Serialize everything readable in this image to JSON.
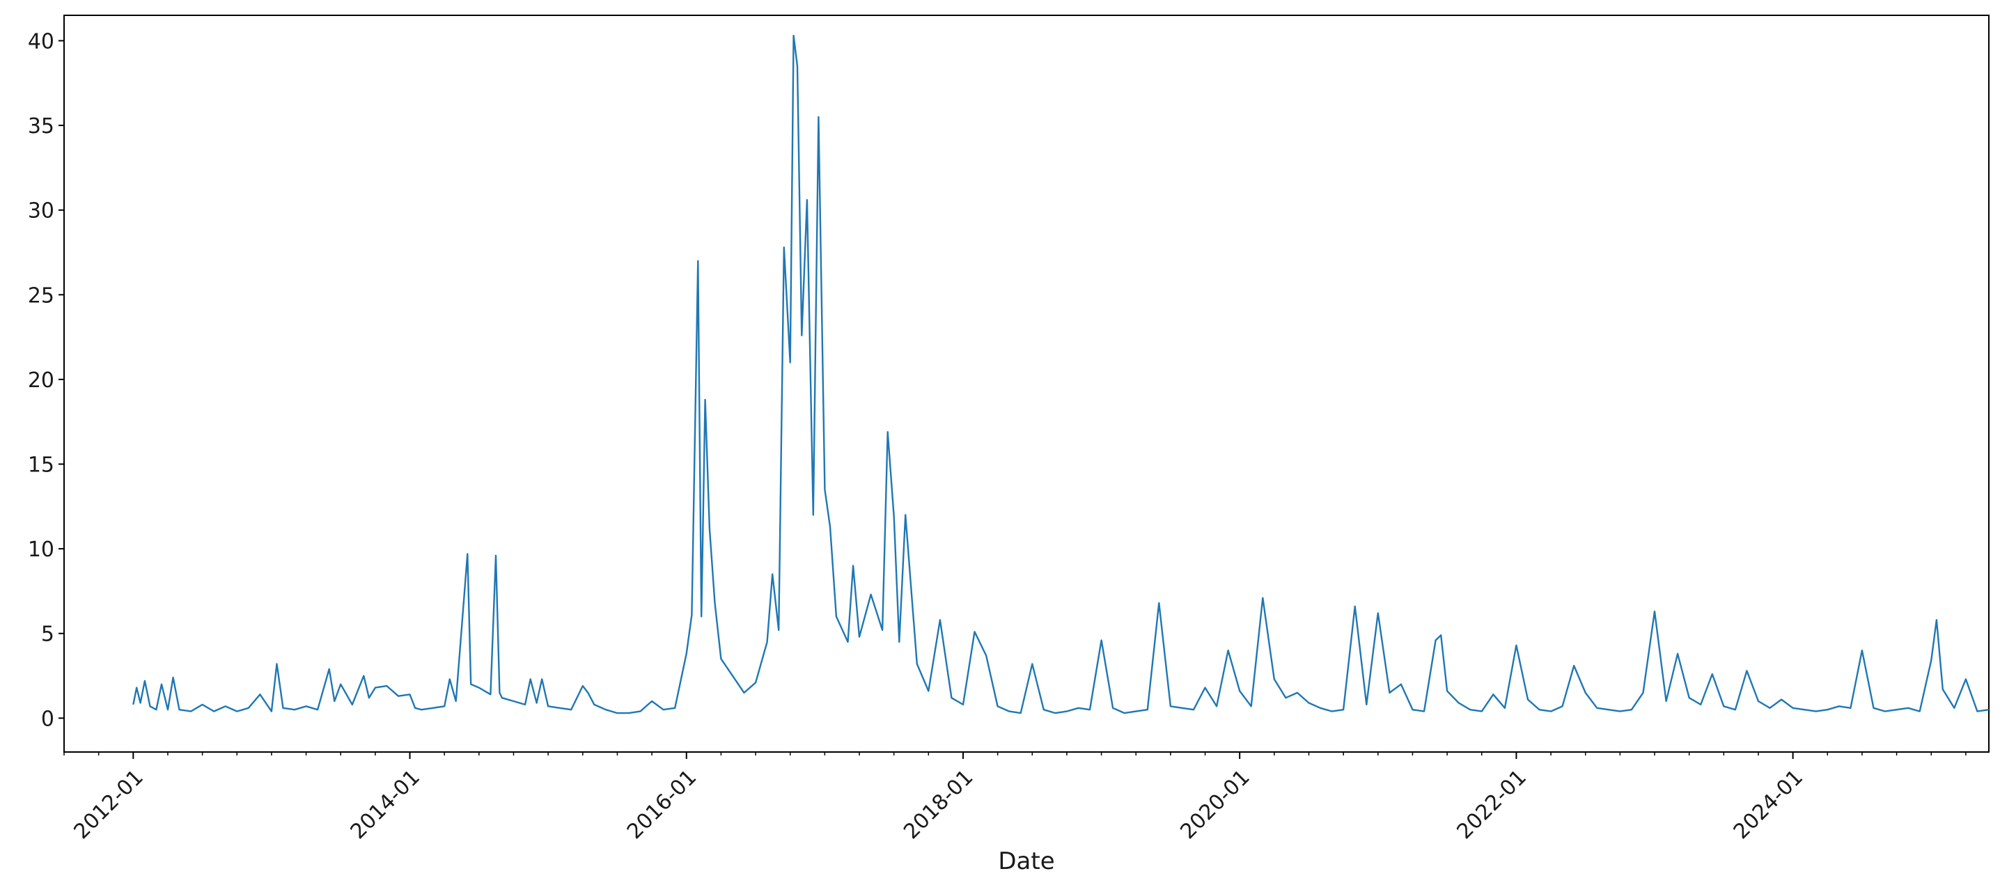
{
  "chart_data": {
    "type": "line",
    "title": "",
    "xlabel": "Date",
    "ylabel": "",
    "x_tick_labels": [
      "2012-01",
      "2014-01",
      "2016-01",
      "2018-01",
      "2020-01",
      "2022-01",
      "2024-01"
    ],
    "y_tick_labels": [
      "0",
      "5",
      "10",
      "15",
      "20",
      "25",
      "30",
      "35",
      "40"
    ],
    "xlim": [
      "2011-07",
      "2025-06"
    ],
    "ylim": [
      -2,
      41.5
    ],
    "grid": false,
    "legend": false,
    "series": [
      {
        "color": "#1f77b4",
        "points": [
          [
            "2012-01-01",
            0.8
          ],
          [
            "2012-01-10",
            1.8
          ],
          [
            "2012-01-20",
            0.9
          ],
          [
            "2012-02-01",
            2.2
          ],
          [
            "2012-02-15",
            0.7
          ],
          [
            "2012-03-01",
            0.5
          ],
          [
            "2012-03-15",
            2.0
          ],
          [
            "2012-04-01",
            0.5
          ],
          [
            "2012-04-15",
            2.4
          ],
          [
            "2012-05-01",
            0.5
          ],
          [
            "2012-06-01",
            0.4
          ],
          [
            "2012-07-01",
            0.8
          ],
          [
            "2012-08-01",
            0.4
          ],
          [
            "2012-09-01",
            0.7
          ],
          [
            "2012-10-01",
            0.4
          ],
          [
            "2012-11-01",
            0.6
          ],
          [
            "2012-12-01",
            1.4
          ],
          [
            "2013-01-01",
            0.4
          ],
          [
            "2013-01-15",
            3.2
          ],
          [
            "2013-02-01",
            0.6
          ],
          [
            "2013-03-01",
            0.5
          ],
          [
            "2013-04-01",
            0.7
          ],
          [
            "2013-05-01",
            0.5
          ],
          [
            "2013-06-01",
            2.9
          ],
          [
            "2013-06-15",
            1.0
          ],
          [
            "2013-07-01",
            2.0
          ],
          [
            "2013-08-01",
            0.8
          ],
          [
            "2013-09-01",
            2.5
          ],
          [
            "2013-09-15",
            1.2
          ],
          [
            "2013-10-01",
            1.8
          ],
          [
            "2013-11-01",
            1.9
          ],
          [
            "2013-12-01",
            1.3
          ],
          [
            "2014-01-01",
            1.4
          ],
          [
            "2014-01-15",
            0.6
          ],
          [
            "2014-02-01",
            0.5
          ],
          [
            "2014-03-01",
            0.6
          ],
          [
            "2014-04-01",
            0.7
          ],
          [
            "2014-04-15",
            2.3
          ],
          [
            "2014-05-01",
            1.0
          ],
          [
            "2014-06-01",
            9.7
          ],
          [
            "2014-06-10",
            2.0
          ],
          [
            "2014-07-01",
            1.8
          ],
          [
            "2014-08-01",
            1.4
          ],
          [
            "2014-08-15",
            9.6
          ],
          [
            "2014-08-25",
            1.5
          ],
          [
            "2014-09-01",
            1.2
          ],
          [
            "2014-10-01",
            1.0
          ],
          [
            "2014-11-01",
            0.8
          ],
          [
            "2014-11-15",
            2.3
          ],
          [
            "2014-12-01",
            0.9
          ],
          [
            "2014-12-15",
            2.3
          ],
          [
            "2015-01-01",
            0.7
          ],
          [
            "2015-02-01",
            0.6
          ],
          [
            "2015-03-01",
            0.5
          ],
          [
            "2015-04-01",
            1.9
          ],
          [
            "2015-04-15",
            1.5
          ],
          [
            "2015-05-01",
            0.8
          ],
          [
            "2015-06-01",
            0.5
          ],
          [
            "2015-07-01",
            0.3
          ],
          [
            "2015-08-01",
            0.3
          ],
          [
            "2015-09-01",
            0.4
          ],
          [
            "2015-10-01",
            1.0
          ],
          [
            "2015-11-01",
            0.5
          ],
          [
            "2015-12-01",
            0.6
          ],
          [
            "2016-01-01",
            3.8
          ],
          [
            "2016-01-15",
            6.1
          ],
          [
            "2016-02-01",
            27.0
          ],
          [
            "2016-02-10",
            6.0
          ],
          [
            "2016-02-20",
            18.8
          ],
          [
            "2016-03-01",
            11.2
          ],
          [
            "2016-03-15",
            6.8
          ],
          [
            "2016-04-01",
            3.5
          ],
          [
            "2016-05-01",
            2.5
          ],
          [
            "2016-06-01",
            1.5
          ],
          [
            "2016-07-01",
            2.1
          ],
          [
            "2016-08-01",
            4.5
          ],
          [
            "2016-08-15",
            8.5
          ],
          [
            "2016-09-01",
            5.2
          ],
          [
            "2016-09-15",
            27.8
          ],
          [
            "2016-10-01",
            21.0
          ],
          [
            "2016-10-10",
            40.3
          ],
          [
            "2016-10-20",
            38.5
          ],
          [
            "2016-11-01",
            22.6
          ],
          [
            "2016-11-15",
            30.6
          ],
          [
            "2016-12-01",
            12.0
          ],
          [
            "2016-12-15",
            35.5
          ],
          [
            "2017-01-01",
            13.5
          ],
          [
            "2017-01-15",
            11.3
          ],
          [
            "2017-02-01",
            6.0
          ],
          [
            "2017-03-01",
            4.5
          ],
          [
            "2017-03-15",
            9.0
          ],
          [
            "2017-04-01",
            4.8
          ],
          [
            "2017-05-01",
            7.3
          ],
          [
            "2017-06-01",
            5.2
          ],
          [
            "2017-06-15",
            16.9
          ],
          [
            "2017-07-01",
            11.9
          ],
          [
            "2017-07-15",
            4.5
          ],
          [
            "2017-08-01",
            12.0
          ],
          [
            "2017-09-01",
            3.2
          ],
          [
            "2017-10-01",
            1.6
          ],
          [
            "2017-11-01",
            5.8
          ],
          [
            "2017-12-01",
            1.2
          ],
          [
            "2018-01-01",
            0.8
          ],
          [
            "2018-02-01",
            5.1
          ],
          [
            "2018-03-01",
            3.7
          ],
          [
            "2018-04-01",
            0.7
          ],
          [
            "2018-05-01",
            0.4
          ],
          [
            "2018-06-01",
            0.3
          ],
          [
            "2018-07-01",
            3.2
          ],
          [
            "2018-08-01",
            0.5
          ],
          [
            "2018-09-01",
            0.3
          ],
          [
            "2018-10-01",
            0.4
          ],
          [
            "2018-11-01",
            0.6
          ],
          [
            "2018-12-01",
            0.5
          ],
          [
            "2019-01-01",
            4.6
          ],
          [
            "2019-02-01",
            0.6
          ],
          [
            "2019-03-01",
            0.3
          ],
          [
            "2019-04-01",
            0.4
          ],
          [
            "2019-05-01",
            0.5
          ],
          [
            "2019-06-01",
            6.8
          ],
          [
            "2019-07-01",
            0.7
          ],
          [
            "2019-08-01",
            0.6
          ],
          [
            "2019-09-01",
            0.5
          ],
          [
            "2019-10-01",
            1.8
          ],
          [
            "2019-11-01",
            0.7
          ],
          [
            "2019-12-01",
            4.0
          ],
          [
            "2020-01-01",
            1.6
          ],
          [
            "2020-02-01",
            0.7
          ],
          [
            "2020-03-01",
            7.1
          ],
          [
            "2020-04-01",
            2.3
          ],
          [
            "2020-05-01",
            1.2
          ],
          [
            "2020-06-01",
            1.5
          ],
          [
            "2020-07-01",
            0.9
          ],
          [
            "2020-08-01",
            0.6
          ],
          [
            "2020-09-01",
            0.4
          ],
          [
            "2020-10-01",
            0.5
          ],
          [
            "2020-11-01",
            6.6
          ],
          [
            "2020-12-01",
            0.8
          ],
          [
            "2021-01-01",
            6.2
          ],
          [
            "2021-02-01",
            1.5
          ],
          [
            "2021-03-01",
            2.0
          ],
          [
            "2021-04-01",
            0.5
          ],
          [
            "2021-05-01",
            0.4
          ],
          [
            "2021-06-01",
            4.6
          ],
          [
            "2021-06-15",
            4.9
          ],
          [
            "2021-07-01",
            1.6
          ],
          [
            "2021-08-01",
            0.9
          ],
          [
            "2021-09-01",
            0.5
          ],
          [
            "2021-10-01",
            0.4
          ],
          [
            "2021-11-01",
            1.4
          ],
          [
            "2021-12-01",
            0.6
          ],
          [
            "2022-01-01",
            4.3
          ],
          [
            "2022-02-01",
            1.1
          ],
          [
            "2022-03-01",
            0.5
          ],
          [
            "2022-04-01",
            0.4
          ],
          [
            "2022-05-01",
            0.7
          ],
          [
            "2022-06-01",
            3.1
          ],
          [
            "2022-07-01",
            1.5
          ],
          [
            "2022-08-01",
            0.6
          ],
          [
            "2022-09-01",
            0.5
          ],
          [
            "2022-10-01",
            0.4
          ],
          [
            "2022-11-01",
            0.5
          ],
          [
            "2022-12-01",
            1.5
          ],
          [
            "2023-01-01",
            6.3
          ],
          [
            "2023-02-01",
            1.0
          ],
          [
            "2023-03-01",
            3.8
          ],
          [
            "2023-04-01",
            1.2
          ],
          [
            "2023-05-01",
            0.8
          ],
          [
            "2023-06-01",
            2.6
          ],
          [
            "2023-07-01",
            0.7
          ],
          [
            "2023-08-01",
            0.5
          ],
          [
            "2023-09-01",
            2.8
          ],
          [
            "2023-10-01",
            1.0
          ],
          [
            "2023-11-01",
            0.6
          ],
          [
            "2023-12-01",
            1.1
          ],
          [
            "2024-01-01",
            0.6
          ],
          [
            "2024-02-01",
            0.5
          ],
          [
            "2024-03-01",
            0.4
          ],
          [
            "2024-04-01",
            0.5
          ],
          [
            "2024-05-01",
            0.7
          ],
          [
            "2024-06-01",
            0.6
          ],
          [
            "2024-07-01",
            4.0
          ],
          [
            "2024-08-01",
            0.6
          ],
          [
            "2024-09-01",
            0.4
          ],
          [
            "2024-10-01",
            0.5
          ],
          [
            "2024-11-01",
            0.6
          ],
          [
            "2024-12-01",
            0.4
          ],
          [
            "2025-01-01",
            3.4
          ],
          [
            "2025-01-15",
            5.8
          ],
          [
            "2025-02-01",
            1.7
          ],
          [
            "2025-03-01",
            0.6
          ],
          [
            "2025-04-01",
            2.3
          ],
          [
            "2025-05-01",
            0.4
          ],
          [
            "2025-06-01",
            0.5
          ]
        ]
      }
    ]
  }
}
